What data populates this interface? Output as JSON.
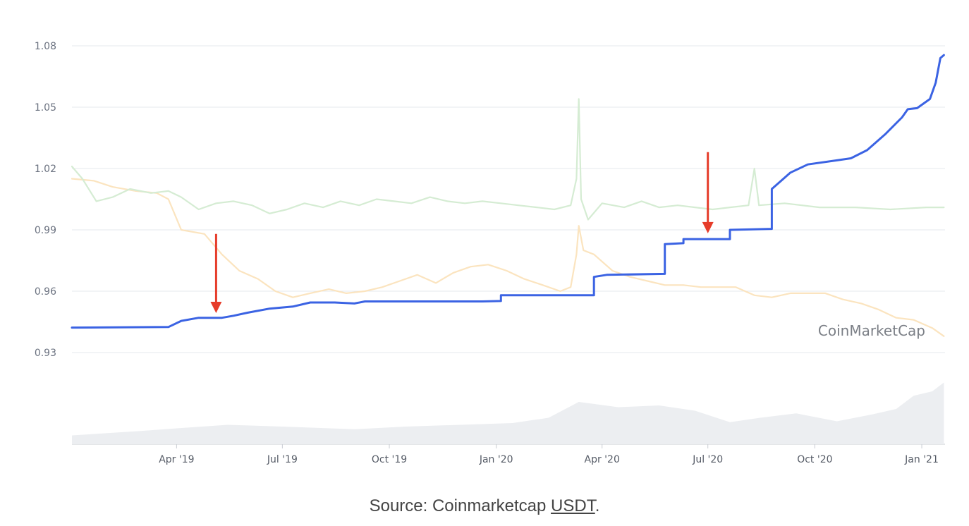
{
  "chart_data": {
    "type": "line",
    "watermark": "CoinMarketCap",
    "yticks": [
      "1.08",
      "1.05",
      "1.02",
      "0.99",
      "0.96",
      "0.93"
    ],
    "ylim": [
      0.93,
      1.08
    ],
    "xticks": [
      "Apr '19",
      "Jul '19",
      "Oct '19",
      "Jan '20",
      "Apr '20",
      "Jul '20",
      "Oct '20",
      "Jan '21"
    ],
    "xlim": [
      "2019-01-01",
      "2021-01-21"
    ],
    "grid": true,
    "series": [
      {
        "color": "#3b63e3",
        "points": [
          [
            "2019-01-01",
            0.9422
          ],
          [
            "2019-03-25",
            0.9425
          ],
          [
            "2019-04-05",
            0.9455
          ],
          [
            "2019-04-20",
            0.947
          ],
          [
            "2019-05-10",
            0.947
          ],
          [
            "2019-05-20",
            0.948
          ],
          [
            "2019-06-01",
            0.9495
          ],
          [
            "2019-06-20",
            0.9515
          ],
          [
            "2019-07-10",
            0.9525
          ],
          [
            "2019-07-25",
            0.9545
          ],
          [
            "2019-08-15",
            0.9545
          ],
          [
            "2019-09-01",
            0.954
          ],
          [
            "2019-09-10",
            0.955
          ],
          [
            "2019-12-20",
            0.955
          ],
          [
            "2020-01-05",
            0.9552
          ],
          [
            "2020-01-05",
            0.958
          ],
          [
            "2020-03-25",
            0.958
          ],
          [
            "2020-03-25",
            0.967
          ],
          [
            "2020-04-05",
            0.968
          ],
          [
            "2020-05-25",
            0.9685
          ],
          [
            "2020-05-25",
            0.983
          ],
          [
            "2020-06-10",
            0.9835
          ],
          [
            "2020-06-10",
            0.9855
          ],
          [
            "2020-07-20",
            0.9855
          ],
          [
            "2020-07-20",
            0.99
          ],
          [
            "2020-08-25",
            0.9905
          ],
          [
            "2020-08-25",
            1.01
          ],
          [
            "2020-09-10",
            1.018
          ],
          [
            "2020-09-25",
            1.022
          ],
          [
            "2020-10-20",
            1.024
          ],
          [
            "2020-11-01",
            1.025
          ],
          [
            "2020-11-15",
            1.029
          ],
          [
            "2020-12-01",
            1.037
          ],
          [
            "2020-12-15",
            1.045
          ],
          [
            "2020-12-20",
            1.049
          ],
          [
            "2020-12-28",
            1.0495
          ],
          [
            "2021-01-08",
            1.054
          ],
          [
            "2021-01-13",
            1.062
          ],
          [
            "2021-01-17",
            1.074
          ],
          [
            "2021-01-20",
            1.0755
          ]
        ]
      },
      {
        "color": "#d5ecd3",
        "points": [
          [
            "2019-01-01",
            1.021
          ],
          [
            "2019-01-10",
            1.015
          ],
          [
            "2019-01-22",
            1.004
          ],
          [
            "2019-02-05",
            1.006
          ],
          [
            "2019-02-20",
            1.01
          ],
          [
            "2019-03-10",
            1.008
          ],
          [
            "2019-03-25",
            1.009
          ],
          [
            "2019-04-05",
            1.006
          ],
          [
            "2019-04-20",
            1.0
          ],
          [
            "2019-05-05",
            1.003
          ],
          [
            "2019-05-20",
            1.004
          ],
          [
            "2019-06-05",
            1.002
          ],
          [
            "2019-06-20",
            0.998
          ],
          [
            "2019-07-05",
            1.0
          ],
          [
            "2019-07-20",
            1.003
          ],
          [
            "2019-08-05",
            1.001
          ],
          [
            "2019-08-20",
            1.004
          ],
          [
            "2019-09-05",
            1.002
          ],
          [
            "2019-09-20",
            1.005
          ],
          [
            "2019-10-05",
            1.004
          ],
          [
            "2019-10-20",
            1.003
          ],
          [
            "2019-11-05",
            1.006
          ],
          [
            "2019-11-20",
            1.004
          ],
          [
            "2019-12-05",
            1.003
          ],
          [
            "2019-12-20",
            1.004
          ],
          [
            "2020-01-05",
            1.003
          ],
          [
            "2020-01-20",
            1.002
          ],
          [
            "2020-02-05",
            1.001
          ],
          [
            "2020-02-20",
            1.0
          ],
          [
            "2020-03-05",
            1.002
          ],
          [
            "2020-03-10",
            1.015
          ],
          [
            "2020-03-12",
            1.054
          ],
          [
            "2020-03-14",
            1.005
          ],
          [
            "2020-03-20",
            0.995
          ],
          [
            "2020-04-01",
            1.003
          ],
          [
            "2020-04-20",
            1.001
          ],
          [
            "2020-05-05",
            1.004
          ],
          [
            "2020-05-20",
            1.001
          ],
          [
            "2020-06-05",
            1.002
          ],
          [
            "2020-06-20",
            1.001
          ],
          [
            "2020-07-05",
            1.0
          ],
          [
            "2020-07-20",
            1.001
          ],
          [
            "2020-08-05",
            1.002
          ],
          [
            "2020-08-10",
            1.02
          ],
          [
            "2020-08-14",
            1.002
          ],
          [
            "2020-09-05",
            1.003
          ],
          [
            "2020-10-05",
            1.001
          ],
          [
            "2020-11-05",
            1.001
          ],
          [
            "2020-12-05",
            1.0
          ],
          [
            "2021-01-05",
            1.001
          ],
          [
            "2021-01-20",
            1.001
          ]
        ]
      },
      {
        "color": "#fbe4bf",
        "points": [
          [
            "2019-01-01",
            1.015
          ],
          [
            "2019-01-20",
            1.014
          ],
          [
            "2019-02-05",
            1.011
          ],
          [
            "2019-02-25",
            1.009
          ],
          [
            "2019-03-15",
            1.008
          ],
          [
            "2019-03-25",
            1.005
          ],
          [
            "2019-04-05",
            0.99
          ],
          [
            "2019-04-25",
            0.988
          ],
          [
            "2019-05-10",
            0.978
          ],
          [
            "2019-05-25",
            0.97
          ],
          [
            "2019-06-10",
            0.966
          ],
          [
            "2019-06-25",
            0.96
          ],
          [
            "2019-07-10",
            0.957
          ],
          [
            "2019-07-25",
            0.959
          ],
          [
            "2019-08-10",
            0.961
          ],
          [
            "2019-08-25",
            0.959
          ],
          [
            "2019-09-10",
            0.96
          ],
          [
            "2019-09-25",
            0.962
          ],
          [
            "2019-10-10",
            0.965
          ],
          [
            "2019-10-25",
            0.968
          ],
          [
            "2019-11-10",
            0.964
          ],
          [
            "2019-11-25",
            0.969
          ],
          [
            "2019-12-10",
            0.972
          ],
          [
            "2019-12-25",
            0.973
          ],
          [
            "2020-01-10",
            0.97
          ],
          [
            "2020-01-25",
            0.966
          ],
          [
            "2020-02-10",
            0.963
          ],
          [
            "2020-02-25",
            0.96
          ],
          [
            "2020-03-05",
            0.962
          ],
          [
            "2020-03-10",
            0.978
          ],
          [
            "2020-03-12",
            0.992
          ],
          [
            "2020-03-16",
            0.98
          ],
          [
            "2020-03-25",
            0.978
          ],
          [
            "2020-04-10",
            0.97
          ],
          [
            "2020-04-25",
            0.967
          ],
          [
            "2020-05-10",
            0.965
          ],
          [
            "2020-05-25",
            0.963
          ],
          [
            "2020-06-10",
            0.963
          ],
          [
            "2020-06-25",
            0.962
          ],
          [
            "2020-07-10",
            0.962
          ],
          [
            "2020-07-25",
            0.962
          ],
          [
            "2020-08-10",
            0.958
          ],
          [
            "2020-08-25",
            0.957
          ],
          [
            "2020-09-10",
            0.959
          ],
          [
            "2020-09-25",
            0.959
          ],
          [
            "2020-10-10",
            0.959
          ],
          [
            "2020-10-25",
            0.956
          ],
          [
            "2020-11-10",
            0.954
          ],
          [
            "2020-11-25",
            0.951
          ],
          [
            "2020-12-10",
            0.947
          ],
          [
            "2020-12-25",
            0.946
          ],
          [
            "2021-01-10",
            0.942
          ],
          [
            "2021-01-20",
            0.938
          ]
        ]
      }
    ],
    "annotations": [
      {
        "type": "arrow",
        "date": "2019-05-05",
        "from": 0.988,
        "to": 0.95,
        "color": "#e63c2a"
      },
      {
        "type": "arrow",
        "date": "2020-07-01",
        "from": 1.028,
        "to": 0.989,
        "color": "#e63c2a"
      }
    ],
    "volume": {
      "color": "#eceef1",
      "points": [
        [
          "2019-01-01",
          0.1
        ],
        [
          "2019-03-01",
          0.15
        ],
        [
          "2019-04-01",
          0.18
        ],
        [
          "2019-05-15",
          0.22
        ],
        [
          "2019-07-01",
          0.2
        ],
        [
          "2019-09-01",
          0.17
        ],
        [
          "2019-10-15",
          0.2
        ],
        [
          "2019-12-01",
          0.22
        ],
        [
          "2020-01-15",
          0.24
        ],
        [
          "2020-02-15",
          0.3
        ],
        [
          "2020-03-12",
          0.48
        ],
        [
          "2020-04-15",
          0.42
        ],
        [
          "2020-05-20",
          0.44
        ],
        [
          "2020-06-20",
          0.38
        ],
        [
          "2020-07-20",
          0.25
        ],
        [
          "2020-08-15",
          0.3
        ],
        [
          "2020-09-15",
          0.35
        ],
        [
          "2020-10-20",
          0.26
        ],
        [
          "2020-11-20",
          0.34
        ],
        [
          "2020-12-10",
          0.4
        ],
        [
          "2020-12-25",
          0.55
        ],
        [
          "2021-01-10",
          0.6
        ],
        [
          "2021-01-20",
          0.7
        ]
      ]
    }
  },
  "caption": {
    "prefix": "Source: Coinmarketcap ",
    "link": "USDT",
    "suffix": "."
  }
}
